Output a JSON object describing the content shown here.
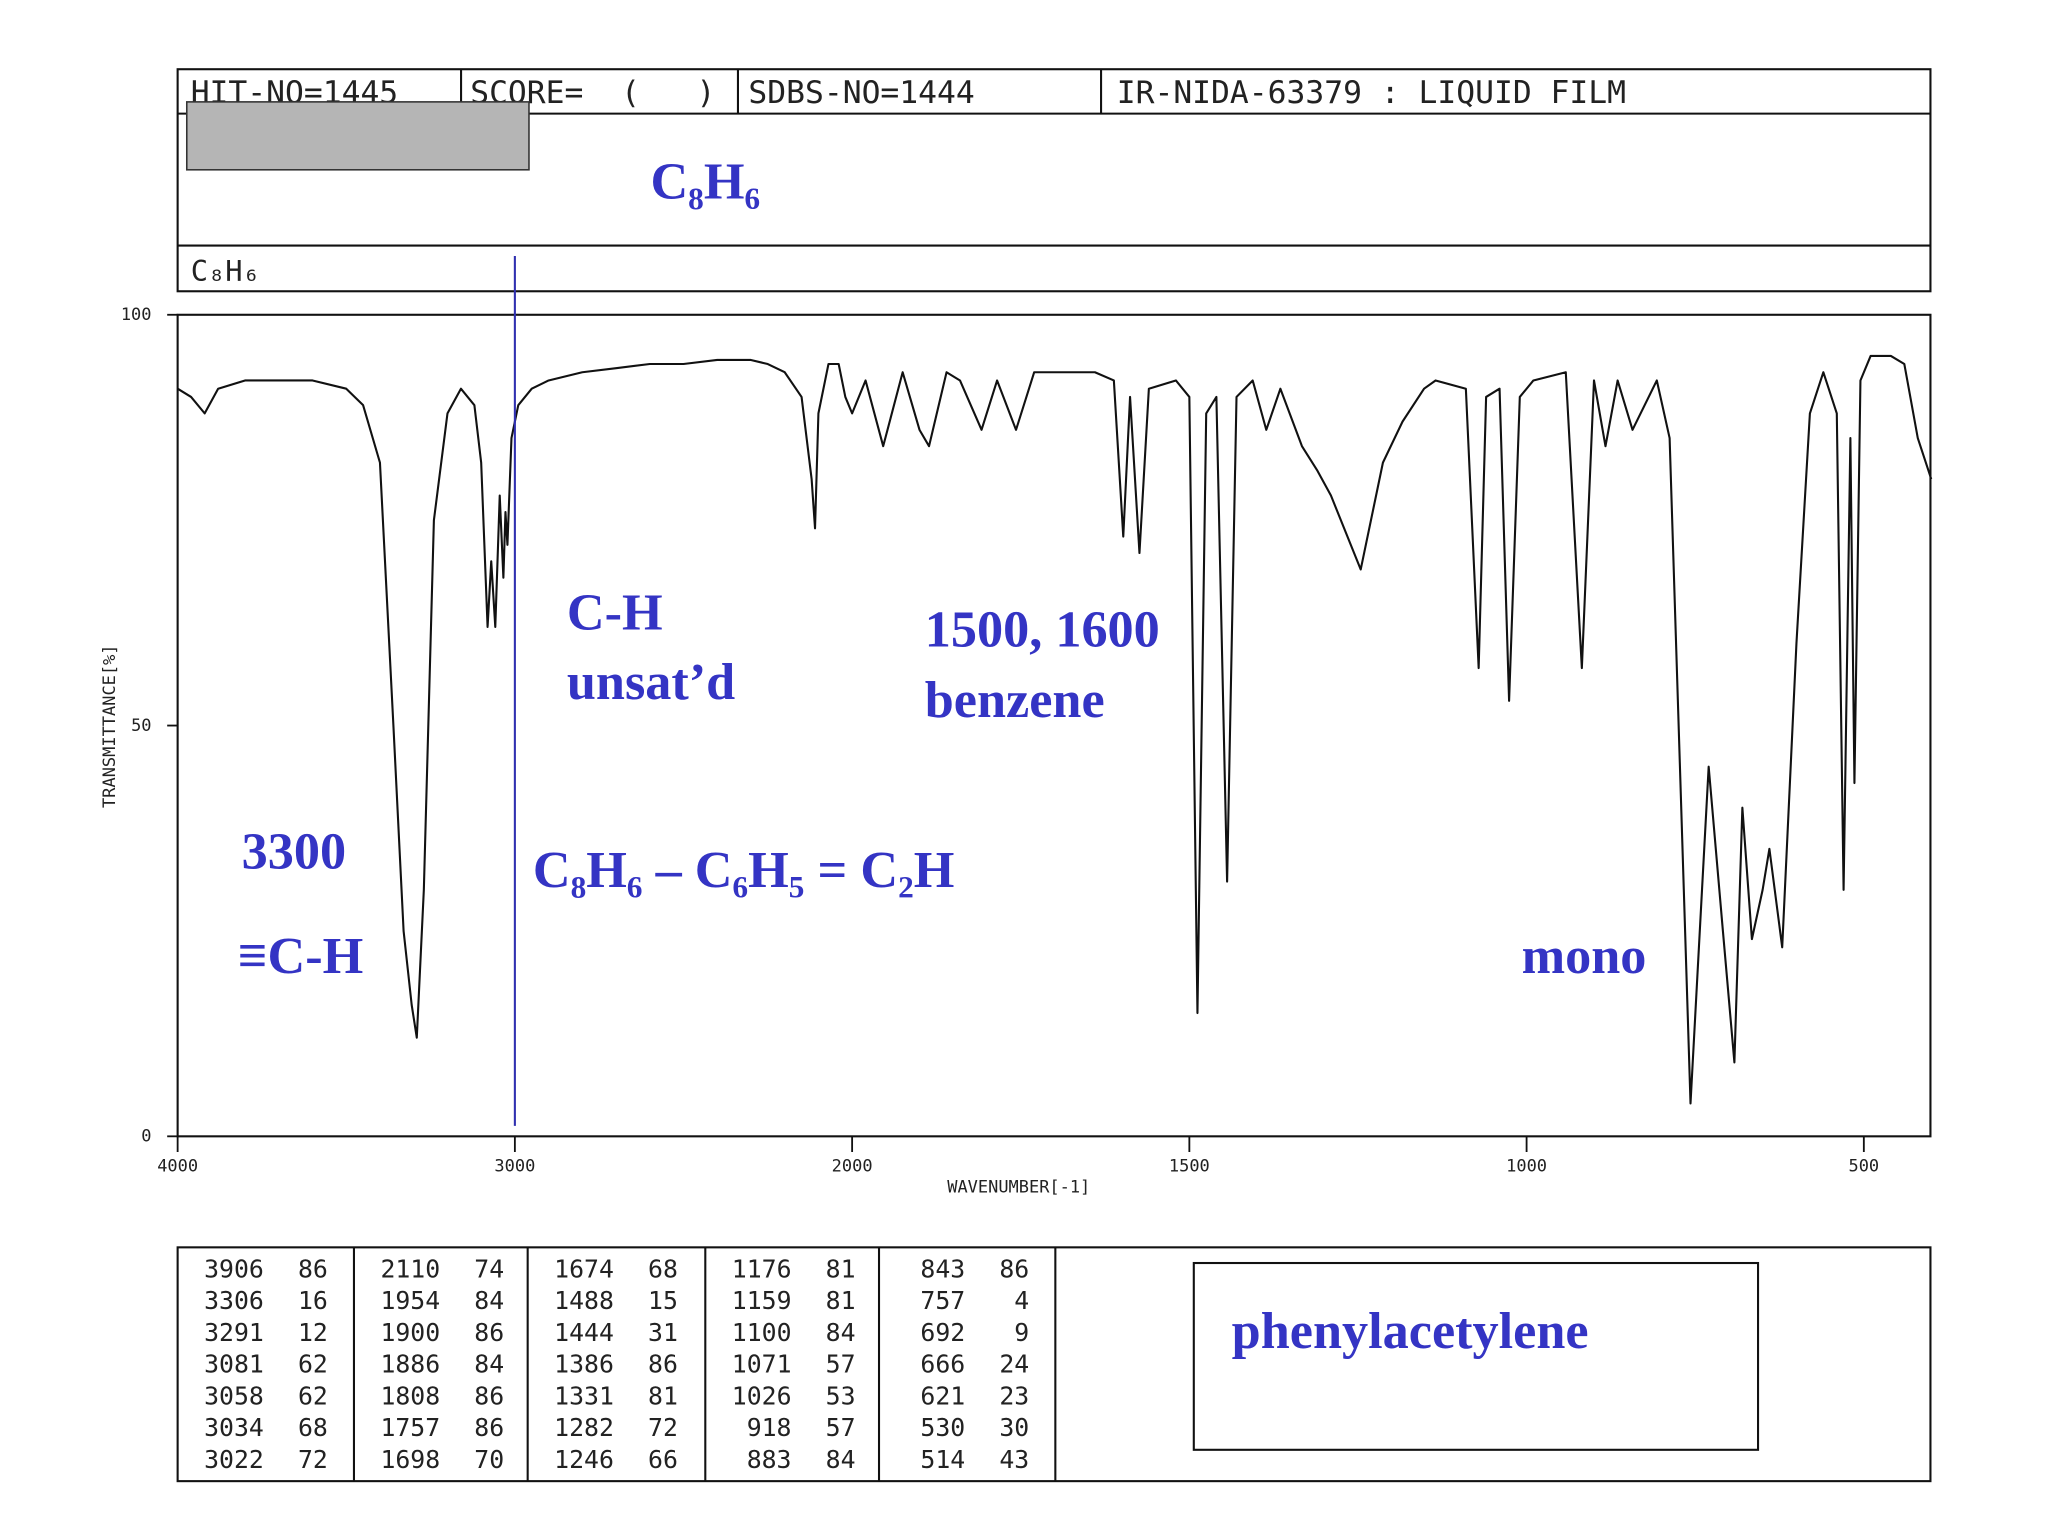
{
  "header": {
    "hit_no": "HIT-NO=1445",
    "score": "SCORE=  (   )",
    "sdbs_no": "SDBS-NO=1444",
    "method": "IR-NIDA-63379 : LIQUID FILM",
    "formula_large": "C₈H₆",
    "formula_small": "C₈H₆"
  },
  "chart_data": {
    "type": "line",
    "ylabel": "TRANSMITTANCE[%]",
    "xlabel": "WAVENUMBER[-1]",
    "xlim": [
      4000,
      400
    ],
    "xticks": [
      4000,
      3000,
      2000,
      1500,
      1000,
      500
    ],
    "ylim": [
      0,
      100
    ],
    "yticks": [
      0,
      50,
      100
    ],
    "grid": false,
    "color": "#111111",
    "reference_line_x": 3000,
    "reference_line_color": "#3030b0",
    "x": [
      4000,
      3960,
      3920,
      3880,
      3800,
      3700,
      3600,
      3500,
      3450,
      3400,
      3360,
      3330,
      3306,
      3291,
      3270,
      3240,
      3200,
      3160,
      3120,
      3100,
      3081,
      3070,
      3058,
      3045,
      3034,
      3028,
      3022,
      3010,
      2990,
      2950,
      2900,
      2800,
      2700,
      2600,
      2500,
      2400,
      2300,
      2250,
      2200,
      2150,
      2120,
      2110,
      2100,
      2070,
      2040,
      2020,
      2000,
      1980,
      1954,
      1925,
      1900,
      1886,
      1860,
      1840,
      1808,
      1785,
      1757,
      1730,
      1640,
      1612,
      1598,
      1588,
      1574,
      1560,
      1520,
      1500,
      1488,
      1475,
      1460,
      1444,
      1430,
      1406,
      1386,
      1365,
      1333,
      1310,
      1290,
      1246,
      1213,
      1184,
      1152,
      1135,
      1090,
      1071,
      1060,
      1040,
      1026,
      1010,
      990,
      942,
      918,
      900,
      883,
      865,
      843,
      807,
      788,
      757,
      740,
      730,
      709,
      692,
      680,
      666,
      650,
      640,
      621,
      600,
      580,
      560,
      540,
      530,
      520,
      514,
      505,
      490,
      460,
      440,
      420,
      400
    ],
    "values": [
      91,
      90,
      88,
      91,
      92,
      92,
      92,
      91,
      89,
      82,
      50,
      25,
      16,
      12,
      30,
      75,
      88,
      91,
      89,
      82,
      62,
      70,
      62,
      78,
      68,
      76,
      72,
      85,
      89,
      91,
      92,
      93,
      93.5,
      94,
      94,
      94.5,
      94.5,
      94,
      93,
      90,
      80,
      74,
      88,
      94,
      94,
      90,
      88,
      92,
      84,
      93,
      86,
      84,
      93,
      92,
      86,
      92,
      86,
      93,
      93,
      92,
      73,
      90,
      71,
      91,
      92,
      90,
      15,
      88,
      90,
      31,
      90,
      92,
      86,
      91,
      84,
      81,
      78,
      69,
      82,
      87,
      91,
      92,
      91,
      57,
      90,
      91,
      53,
      90,
      92,
      93,
      57,
      92,
      84,
      92,
      86,
      92,
      85,
      4,
      30,
      45,
      25,
      9,
      40,
      24,
      30,
      35,
      23,
      60,
      88,
      93,
      88,
      30,
      85,
      43,
      92,
      95,
      95,
      94,
      85,
      80
    ],
    "annotations": [
      "3300",
      "≡C-H",
      "C-H",
      "unsat’d",
      "1500, 1600",
      "benzene",
      "C₈H₆ – C₆H₅ = C₂H",
      "mono"
    ]
  },
  "peak_table": [
    [
      [
        3906,
        86
      ],
      [
        3306,
        16
      ],
      [
        3291,
        12
      ],
      [
        3081,
        62
      ],
      [
        3058,
        62
      ],
      [
        3034,
        68
      ],
      [
        3022,
        72
      ]
    ],
    [
      [
        2110,
        74
      ],
      [
        1954,
        84
      ],
      [
        1900,
        86
      ],
      [
        1886,
        84
      ],
      [
        1808,
        86
      ],
      [
        1757,
        86
      ],
      [
        1698,
        70
      ]
    ],
    [
      [
        1674,
        68
      ],
      [
        1488,
        15
      ],
      [
        1444,
        31
      ],
      [
        1386,
        86
      ],
      [
        1331,
        81
      ],
      [
        1282,
        72
      ],
      [
        1246,
        66
      ]
    ],
    [
      [
        1176,
        81
      ],
      [
        1159,
        81
      ],
      [
        1100,
        84
      ],
      [
        1071,
        57
      ],
      [
        1026,
        53
      ],
      [
        918,
        57
      ],
      [
        883,
        84
      ]
    ],
    [
      [
        843,
        86
      ],
      [
        757,
        4
      ],
      [
        692,
        9
      ],
      [
        666,
        24
      ],
      [
        621,
        23
      ],
      [
        530,
        30
      ],
      [
        514,
        43
      ]
    ]
  ],
  "compound_name": "phenylacetylene"
}
